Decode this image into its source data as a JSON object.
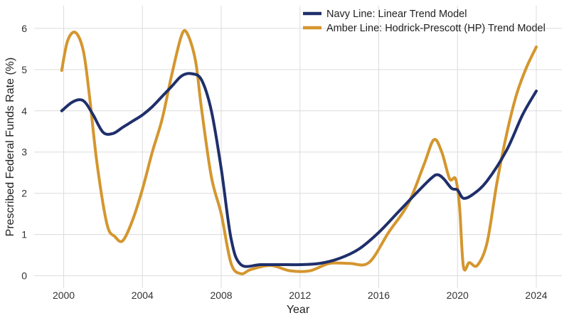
{
  "chart_data": {
    "type": "line",
    "title": "",
    "xlabel": "Year",
    "ylabel": "Prescribed Federal Funds Rate (%)",
    "xlim": [
      1998.5,
      2025.3
    ],
    "ylim": [
      -0.3,
      6.55
    ],
    "x_ticks": [
      2000,
      2004,
      2008,
      2012,
      2016,
      2020,
      2024
    ],
    "y_ticks": [
      0,
      1,
      2,
      3,
      4,
      5,
      6
    ],
    "grid": true,
    "legend_position": "top-right",
    "series": [
      {
        "name": "Navy Line: Linear Trend Model",
        "color": "#1f2f6b",
        "x": [
          1999.9,
          2000.4,
          2000.8,
          2001.1,
          2001.5,
          2002.0,
          2002.5,
          2003.0,
          2003.5,
          2004.0,
          2004.5,
          2005.0,
          2005.5,
          2006.0,
          2006.5,
          2007.0,
          2007.5,
          2008.0,
          2008.5,
          2009.0,
          2010.0,
          2011.0,
          2012.0,
          2013.0,
          2014.0,
          2015.0,
          2016.0,
          2017.0,
          2018.0,
          2018.7,
          2019.0,
          2019.3,
          2019.7,
          2020.0,
          2020.3,
          2020.8,
          2021.5,
          2022.5,
          2023.3,
          2024.0
        ],
        "values": [
          4.0,
          4.2,
          4.27,
          4.2,
          3.9,
          3.48,
          3.45,
          3.6,
          3.75,
          3.9,
          4.1,
          4.35,
          4.6,
          4.85,
          4.9,
          4.75,
          4.0,
          2.6,
          0.9,
          0.27,
          0.27,
          0.27,
          0.27,
          0.3,
          0.42,
          0.65,
          1.05,
          1.55,
          2.05,
          2.38,
          2.45,
          2.35,
          2.12,
          2.08,
          1.88,
          1.98,
          2.3,
          3.05,
          3.9,
          4.48
        ]
      },
      {
        "name": "Amber Line: Hodrick-Prescott (HP) Trend Model",
        "color": "#d4962e",
        "x": [
          1999.9,
          2000.2,
          2000.6,
          2001.0,
          2001.3,
          2001.7,
          2002.2,
          2002.6,
          2003.0,
          2003.5,
          2004.0,
          2004.5,
          2005.0,
          2005.5,
          2006.0,
          2006.3,
          2006.7,
          2007.0,
          2007.5,
          2008.0,
          2008.5,
          2009.0,
          2009.5,
          2010.5,
          2011.5,
          2012.5,
          2013.5,
          2014.5,
          2015.5,
          2016.5,
          2017.5,
          2018.3,
          2018.8,
          2019.2,
          2019.6,
          2019.9,
          2020.1,
          2020.3,
          2020.6,
          2021.0,
          2021.5,
          2022.0,
          2022.5,
          2023.0,
          2023.5,
          2024.0
        ],
        "values": [
          4.98,
          5.7,
          5.9,
          5.45,
          4.4,
          2.7,
          1.25,
          0.95,
          0.85,
          1.35,
          2.1,
          3.0,
          3.8,
          4.9,
          5.85,
          5.85,
          5.2,
          4.05,
          2.4,
          1.5,
          0.3,
          0.05,
          0.15,
          0.25,
          0.12,
          0.12,
          0.3,
          0.3,
          0.32,
          1.05,
          1.75,
          2.7,
          3.3,
          3.0,
          2.35,
          2.35,
          1.7,
          0.22,
          0.32,
          0.25,
          0.8,
          2.25,
          3.45,
          4.4,
          5.05,
          5.55
        ]
      }
    ]
  }
}
